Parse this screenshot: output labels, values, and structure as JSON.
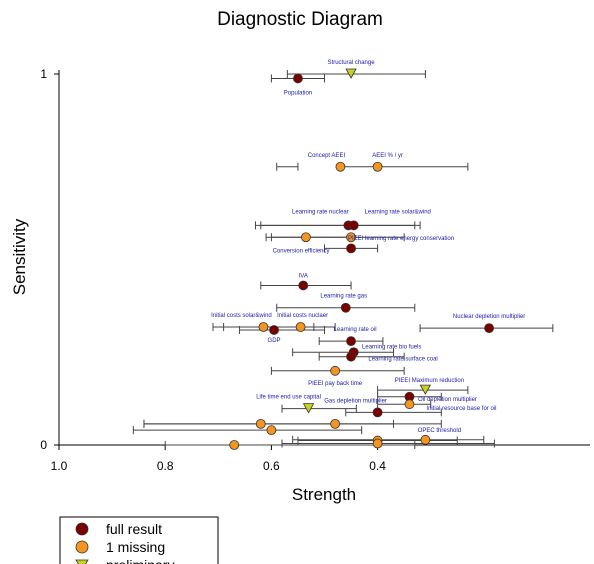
{
  "chart_data": {
    "type": "scatter",
    "title": "Diagnostic Diagram",
    "xlabel": "Strength",
    "ylabel": "Sensitivity",
    "xlim": [
      1.0,
      0.0
    ],
    "ylim": [
      0,
      1
    ],
    "x_ticks": [
      {
        "value": 1.0,
        "label": "1.0"
      },
      {
        "value": 0.8,
        "label": "0.8"
      },
      {
        "value": 0.6,
        "label": "0.6"
      },
      {
        "value": 0.4,
        "label": "0.4"
      }
    ],
    "y_ticks": [
      {
        "value": 0,
        "label": "0"
      },
      {
        "value": 1,
        "label": "1"
      }
    ],
    "legend_position": "bottom-left",
    "legend": [
      {
        "key": "full",
        "label": "full result",
        "marker": "circle",
        "color": "#7a0000"
      },
      {
        "key": "missing",
        "label": "1 missing",
        "marker": "circle",
        "color": "#f5941e"
      },
      {
        "key": "prelim",
        "label": "preliminary",
        "marker": "triangle",
        "color": "#c8d21e"
      }
    ],
    "points": [
      {
        "label": "Structural change",
        "cat": "prelim",
        "x": 0.45,
        "y": 1.0,
        "err": [
          0.57,
          0.31
        ]
      },
      {
        "label": "Population",
        "cat": "full",
        "x": 0.55,
        "y": 0.988,
        "err": [
          0.6,
          0.5
        ]
      },
      {
        "label": "Concept AEEI",
        "cat": "missing",
        "x": 0.47,
        "y": 0.75,
        "err": [
          0.59,
          0.55
        ]
      },
      {
        "label": "AEEI % / yr",
        "cat": "missing",
        "x": 0.4,
        "y": 0.75,
        "err": [
          0.47,
          0.23
        ]
      },
      {
        "label": "Learning rate nuclear",
        "cat": "full",
        "x": 0.455,
        "y": 0.592,
        "err": [
          0.63,
          0.33
        ]
      },
      {
        "label": "Learning rate solar&wind",
        "cat": "full",
        "x": 0.445,
        "y": 0.592,
        "err": [
          0.62,
          0.32
        ]
      },
      {
        "label": "PIEEI learning rate energy conservation",
        "cat": "missing",
        "x": 0.45,
        "y": 0.56,
        "err": [
          0.61,
          0.35
        ]
      },
      {
        "label": "",
        "cat": "missing",
        "x": 0.535,
        "y": 0.56,
        "err": [
          0.6,
          0.45
        ]
      },
      {
        "label": "Conversion efficiency",
        "cat": "full",
        "x": 0.45,
        "y": 0.53,
        "err": [
          0.5,
          0.4
        ]
      },
      {
        "label": "IVA",
        "cat": "full",
        "x": 0.54,
        "y": 0.43,
        "err": [
          0.62,
          0.45
        ]
      },
      {
        "label": "Learning rate gas",
        "cat": "full",
        "x": 0.46,
        "y": 0.37,
        "err": [
          0.59,
          0.33
        ]
      },
      {
        "label": "Nuclear depletion multiplier",
        "cat": "full",
        "x": 0.19,
        "y": 0.315,
        "err": [
          0.32,
          0.07
        ]
      },
      {
        "label": "Initial costs solar&wind",
        "cat": "missing",
        "x": 0.615,
        "y": 0.318,
        "err": [
          0.71,
          0.52
        ]
      },
      {
        "label": "Initial costs nuclaer",
        "cat": "missing",
        "x": 0.545,
        "y": 0.318,
        "err": [
          0.69,
          0.48
        ]
      },
      {
        "label": "GDP",
        "cat": "full",
        "x": 0.595,
        "y": 0.31,
        "err": [
          0.66,
          0.5
        ]
      },
      {
        "label": "Learning rate oil",
        "cat": "full",
        "x": 0.45,
        "y": 0.28,
        "err": [
          0.51,
          0.39
        ]
      },
      {
        "label": "Learning rate bio fuels",
        "cat": "full",
        "x": 0.445,
        "y": 0.25,
        "err": [
          0.56,
          0.37
        ]
      },
      {
        "label": "Learning rate surface coal",
        "cat": "full",
        "x": 0.45,
        "y": 0.238,
        "err": [
          0.51,
          0.35
        ]
      },
      {
        "label": "PIEEI pay back time",
        "cat": "missing",
        "x": 0.48,
        "y": 0.2,
        "err": [
          0.6,
          0.35
        ]
      },
      {
        "label": "PIEEI Maximum reduction",
        "cat": "prelim",
        "x": 0.31,
        "y": 0.148,
        "err": [
          0.4,
          0.23
        ]
      },
      {
        "label": "Oil depletion multiplier",
        "cat": "full",
        "x": 0.34,
        "y": 0.13,
        "err": [
          0.4,
          0.28
        ]
      },
      {
        "label": "Initial resource base for oil",
        "cat": "missing",
        "x": 0.34,
        "y": 0.11,
        "err": [
          0.4,
          0.3
        ]
      },
      {
        "label": "Life time end use capital",
        "cat": "prelim",
        "x": 0.53,
        "y": 0.098,
        "err": [
          0.58,
          0.44
        ]
      },
      {
        "label": "Gas depletion multiplier",
        "cat": "full",
        "x": 0.4,
        "y": 0.088,
        "err": [
          0.46,
          0.28
        ]
      },
      {
        "label": "",
        "cat": "missing",
        "x": 0.62,
        "y": 0.057,
        "err": [
          0.84,
          0.37
        ]
      },
      {
        "label": "",
        "cat": "missing",
        "x": 0.48,
        "y": 0.057,
        "err": [
          0.84,
          0.28
        ]
      },
      {
        "label": "",
        "cat": "missing",
        "x": 0.6,
        "y": 0.04,
        "err": [
          0.86,
          0.43
        ]
      },
      {
        "label": "OPEC threshold",
        "cat": "missing",
        "x": 0.31,
        "y": 0.014,
        "err": [
          0.56,
          0.2
        ]
      },
      {
        "label": "",
        "cat": "missing",
        "x": 0.4,
        "y": 0.012,
        "err": [
          0.55,
          0.25
        ]
      },
      {
        "label": "",
        "cat": "missing",
        "x": 0.4,
        "y": 0.004,
        "err": [
          0.58,
          0.18
        ]
      },
      {
        "label": "",
        "cat": "missing",
        "x": 0.67,
        "y": 0.0,
        "err": [
          0.8,
          0.33
        ]
      }
    ]
  }
}
